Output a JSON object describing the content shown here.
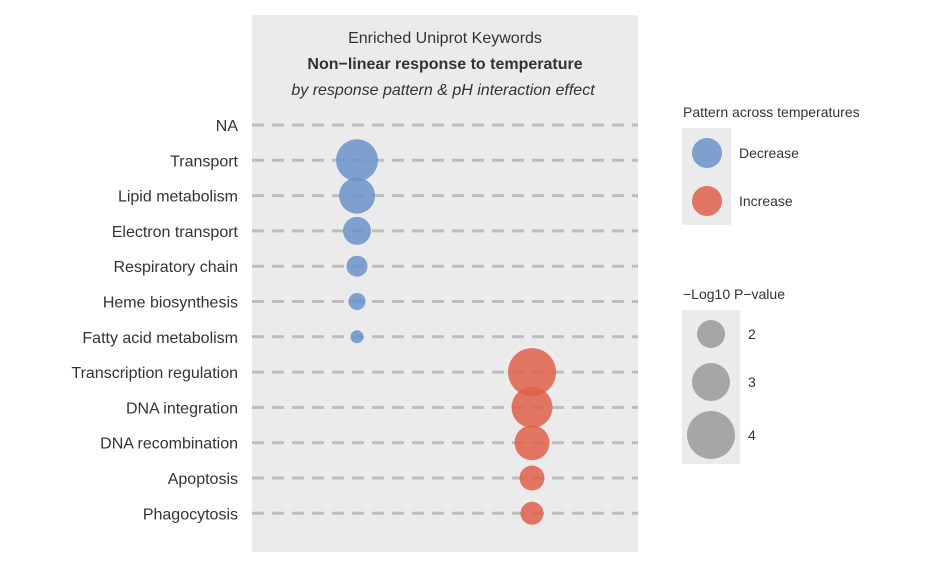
{
  "chart_data": {
    "type": "scatter",
    "title": "Enriched Uniprot Keywords",
    "subtitle": "Non−linear response to temperature",
    "caption": "by response pattern & pH interaction effect",
    "categories": [
      "NA",
      "Transport",
      "Lipid metabolism",
      "Electron transport",
      "Respiratory chain",
      "Heme biosynthesis",
      "Fatty acid metabolism",
      "Transcription regulation",
      "DNA integration",
      "DNA recombination",
      "Apoptosis",
      "Phagocytosis"
    ],
    "series": [
      {
        "name": "Decrease",
        "color": "#6a93c9",
        "points": [
          {
            "category": "Transport",
            "size": 4.2
          },
          {
            "category": "Lipid metabolism",
            "size": 3.6
          },
          {
            "category": "Electron transport",
            "size": 2.8
          },
          {
            "category": "Respiratory chain",
            "size": 2.1
          },
          {
            "category": "Heme biosynthesis",
            "size": 1.7
          },
          {
            "category": "Fatty acid metabolism",
            "size": 1.3
          }
        ]
      },
      {
        "name": "Increase",
        "color": "#e0604a",
        "points": [
          {
            "category": "Transcription regulation",
            "size": 4.8
          },
          {
            "category": "DNA integration",
            "size": 4.1
          },
          {
            "category": "DNA recombination",
            "size": 3.5
          },
          {
            "category": "Apoptosis",
            "size": 2.5
          },
          {
            "category": "Phagocytosis",
            "size": 2.3
          }
        ]
      }
    ],
    "legend_color": {
      "title": "Pattern across temperatures",
      "entries": [
        "Decrease",
        "Increase"
      ]
    },
    "legend_size": {
      "title": "−Log10 P−value",
      "values": [
        2,
        3,
        4
      ]
    },
    "grid": true,
    "legend_position": "right"
  }
}
